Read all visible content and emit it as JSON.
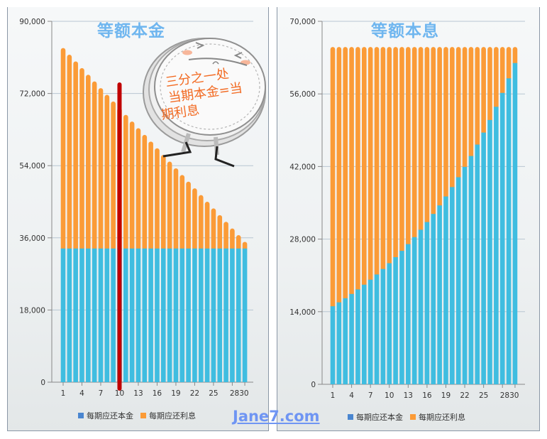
{
  "watermark": "Jane7.com",
  "annotation": {
    "lines": [
      "三分之一处",
      "当期本金=当",
      "期利息"
    ],
    "marker_period": 10,
    "marker_color": "#c00000"
  },
  "colors": {
    "principal": "#3fbde0",
    "interest": "#fb9b37",
    "title": "#6fb6ef",
    "legend_principal": "#4a86d0",
    "legend_interest": "#fb9b37"
  },
  "legend": {
    "principal": "每期应还本金",
    "interest": "每期应还利息"
  },
  "chart_data": [
    {
      "type": "bar",
      "stacked": true,
      "title": "等额本金",
      "xlabel": "",
      "ylabel": "",
      "ylim": [
        0,
        90000
      ],
      "yticks": [
        "0",
        "18,000",
        "36,000",
        "54,000",
        "72,000",
        "90,000"
      ],
      "xticks": [
        "1",
        "4",
        "7",
        "10",
        "13",
        "16",
        "19",
        "22",
        "25",
        "28",
        "30"
      ],
      "grid": true,
      "legend_position": "bottom",
      "categories": [
        1,
        2,
        3,
        4,
        5,
        6,
        7,
        8,
        9,
        10,
        11,
        12,
        13,
        14,
        15,
        16,
        17,
        18,
        19,
        20,
        21,
        22,
        23,
        24,
        25,
        26,
        27,
        28,
        29,
        30
      ],
      "series": [
        {
          "name": "每期应还本金",
          "values": [
            33333,
            33333,
            33333,
            33333,
            33333,
            33333,
            33333,
            33333,
            33333,
            33333,
            33333,
            33333,
            33333,
            33333,
            33333,
            33333,
            33333,
            33333,
            33333,
            33333,
            33333,
            33333,
            33333,
            33333,
            33333,
            33333,
            33333,
            33333,
            33333,
            33333
          ]
        },
        {
          "name": "每期应还利息",
          "values": [
            50000,
            48333,
            46667,
            45000,
            43333,
            41667,
            40000,
            38333,
            36667,
            35000,
            33333,
            31667,
            30000,
            28333,
            26667,
            25000,
            23333,
            21667,
            20000,
            18333,
            16667,
            15000,
            13333,
            11667,
            10000,
            8333,
            6667,
            5000,
            3333,
            1667
          ]
        }
      ]
    },
    {
      "type": "bar",
      "stacked": true,
      "title": "等额本息",
      "xlabel": "",
      "ylabel": "",
      "ylim": [
        0,
        70000
      ],
      "yticks": [
        "0",
        "14,000",
        "28,000",
        "42,000",
        "56,000",
        "70,000"
      ],
      "xticks": [
        "1",
        "4",
        "7",
        "10",
        "13",
        "16",
        "19",
        "22",
        "25",
        "28",
        "30"
      ],
      "grid": true,
      "legend_position": "bottom",
      "categories": [
        1,
        2,
        3,
        4,
        5,
        6,
        7,
        8,
        9,
        10,
        11,
        12,
        13,
        14,
        15,
        16,
        17,
        18,
        19,
        20,
        21,
        22,
        23,
        24,
        25,
        26,
        27,
        28,
        29,
        30
      ],
      "series": [
        {
          "name": "每期应还本金",
          "values": [
            15051,
            15804,
            16594,
            17424,
            18295,
            19210,
            20170,
            21179,
            22238,
            23349,
            24517,
            25743,
            27030,
            28381,
            29800,
            31290,
            32855,
            34498,
            36223,
            38034,
            39936,
            41932,
            44029,
            46231,
            48542,
            50969,
            53518,
            56194,
            59003,
            61954
          ]
        },
        {
          "name": "每期应还利息",
          "values": [
            50000,
            49247,
            48457,
            47627,
            46756,
            45841,
            44881,
            43872,
            42813,
            41702,
            40534,
            39308,
            38021,
            36670,
            35251,
            33761,
            32196,
            30553,
            28828,
            27017,
            25115,
            23119,
            21022,
            18820,
            16509,
            14082,
            11533,
            8857,
            6048,
            3097
          ]
        }
      ]
    }
  ]
}
